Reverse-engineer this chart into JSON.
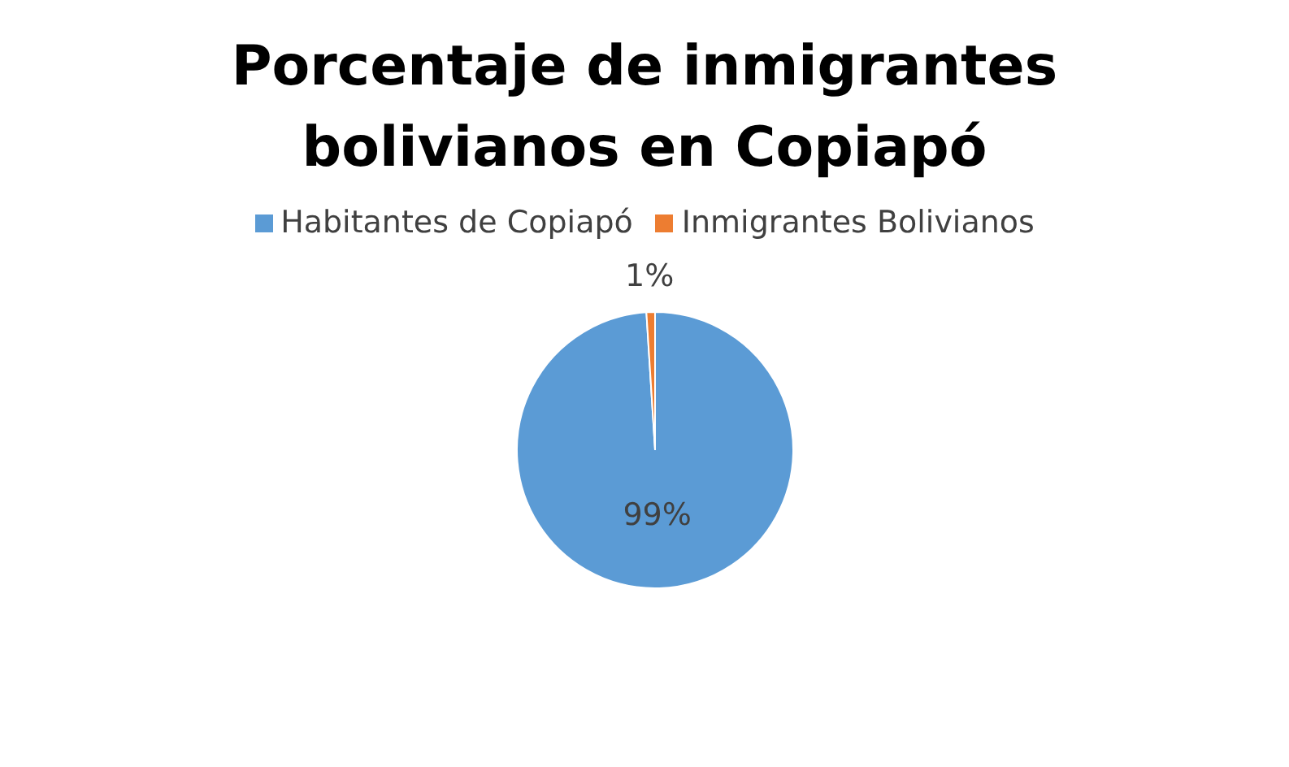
{
  "chart_data": {
    "type": "pie",
    "title": "Porcentaje de inmigrantes bolivianos en Copiapó",
    "categories": [
      "Habitantes de Copiapó",
      "Inmigrantes Bolivianos"
    ],
    "values": [
      99,
      1
    ],
    "colors": [
      "#5b9bd5",
      "#ed7d31"
    ],
    "value_labels": [
      "99%",
      "1%"
    ],
    "legend": "top"
  }
}
